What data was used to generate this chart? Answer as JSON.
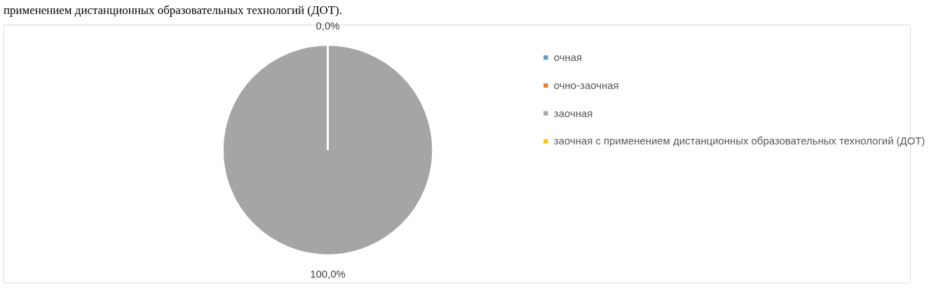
{
  "chart_data": {
    "type": "pie",
    "annotations": [
      "применением дистанционных образовательных технологий (ДОТ)."
    ],
    "categories": [
      "очная",
      "очно-заочная",
      "заочная",
      "заочная с применением дистанционных образовательных технологий (ДОТ)"
    ],
    "values": [
      0,
      0,
      100,
      0
    ],
    "colors": [
      "#5b9bd5",
      "#ed7d31",
      "#a5a5a5",
      "#ffc000"
    ],
    "value_labels": [
      "0,0%",
      null,
      "100,0%",
      null
    ],
    "legend": "right"
  }
}
